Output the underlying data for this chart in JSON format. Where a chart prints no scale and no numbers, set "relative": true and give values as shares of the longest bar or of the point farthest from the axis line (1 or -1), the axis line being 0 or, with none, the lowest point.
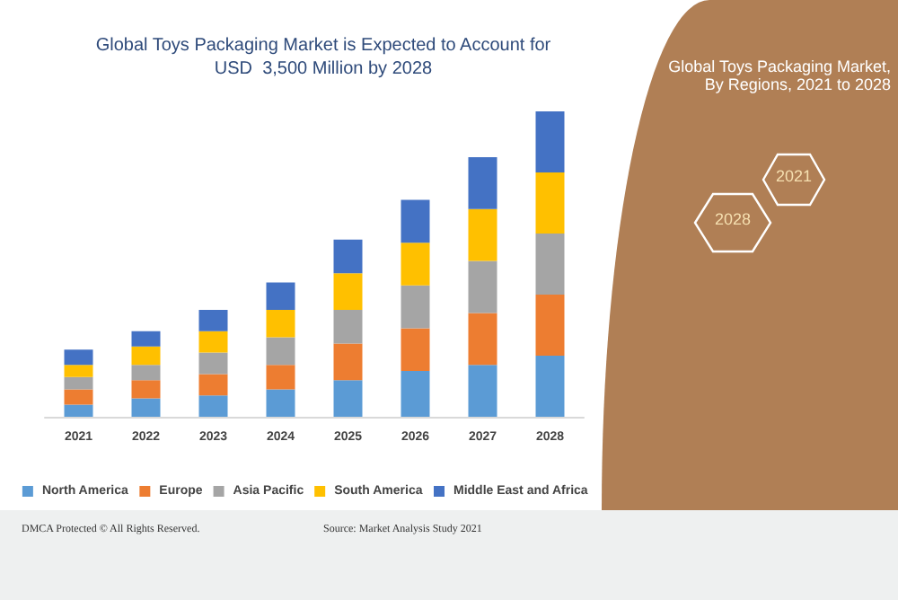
{
  "chart_data": {
    "type": "bar",
    "title": "Global Toys Packaging Market is Expected to Account for\nUSD  3,500 Million by 2028",
    "categories": [
      "2021",
      "2022",
      "2023",
      "2024",
      "2025",
      "2026",
      "2027",
      "2028"
    ],
    "stacked": true,
    "relative": true,
    "legend": "bottom",
    "series": [
      {
        "name": "North America",
        "color": "#5b9bd5",
        "values": [
          0.04,
          0.06,
          0.07,
          0.09,
          0.12,
          0.15,
          0.17,
          0.2
        ]
      },
      {
        "name": "Europe",
        "color": "#ed7d31",
        "values": [
          0.05,
          0.06,
          0.07,
          0.08,
          0.12,
          0.14,
          0.17,
          0.2
        ]
      },
      {
        "name": "Asia Pacific",
        "color": "#a5a5a5",
        "values": [
          0.04,
          0.05,
          0.07,
          0.09,
          0.11,
          0.14,
          0.17,
          0.2
        ]
      },
      {
        "name": "South America",
        "color": "#ffc000",
        "values": [
          0.04,
          0.06,
          0.07,
          0.09,
          0.12,
          0.14,
          0.17,
          0.2
        ]
      },
      {
        "name": "Middle East and Africa",
        "color": "#4472c4",
        "values": [
          0.05,
          0.05,
          0.07,
          0.09,
          0.11,
          0.14,
          0.17,
          0.2
        ]
      }
    ],
    "annotations": [
      "Global Toys Packaging Market, By Regions, 2021 to 2028",
      "2028",
      "2021",
      "DMCA Protected © All Rights Reserved.",
      "Source: Market Analysis Study 2021"
    ]
  }
}
